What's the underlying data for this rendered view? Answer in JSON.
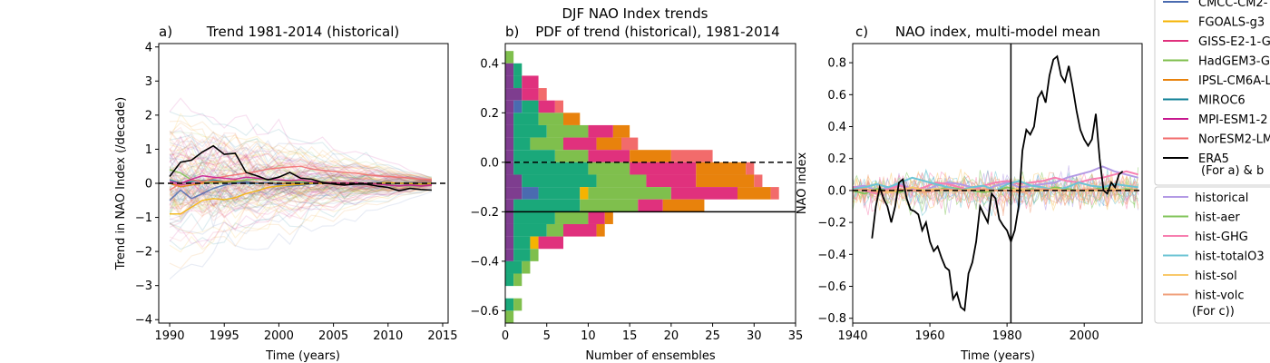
{
  "suptitle": "DJF NAO Index trends",
  "panels": {
    "a": {
      "letter": "a)",
      "title": "Trend 1981-2014 (historical)",
      "xlabel": "Time (years)",
      "ylabel": "Trend in NAO Index (/decade)"
    },
    "b": {
      "letter": "b)",
      "title": "PDF of trend (historical), 1981-2014",
      "xlabel": "Number of ensembles",
      "ylabel": ""
    },
    "c": {
      "letter": "c)",
      "title": "NAO index, multi-model mean",
      "xlabel": "Time (years)",
      "ylabel": "NAO index"
    }
  },
  "legend1": {
    "entries": [
      {
        "label": "CMCC-CM2-",
        "color": "#4a6bb0"
      },
      {
        "label": "FGOALS-g3",
        "color": "#f5b301"
      },
      {
        "label": "GISS-E2-1-G",
        "color": "#e0317d"
      },
      {
        "label": "HadGEM3-G",
        "color": "#7fbf4d"
      },
      {
        "label": "IPSL-CM6A-L",
        "color": "#e8820c"
      },
      {
        "label": "MIROC6",
        "color": "#0e7f96"
      },
      {
        "label": "MPI-ESM1-2",
        "color": "#c7178f"
      },
      {
        "label": "NorESM2-LM",
        "color": "#f26b6b"
      },
      {
        "label": "ERA5",
        "color": "#000000"
      }
    ],
    "note": "(For a) & b"
  },
  "legend2": {
    "entries": [
      {
        "label": "historical",
        "color": "#b39ae5"
      },
      {
        "label": "hist-aer",
        "color": "#82c45a"
      },
      {
        "label": "hist-GHG",
        "color": "#f77fb0"
      },
      {
        "label": "hist-totalO3",
        "color": "#6cc4d4"
      },
      {
        "label": "hist-sol",
        "color": "#f9c96a"
      },
      {
        "label": "hist-volc",
        "color": "#f0a07c"
      }
    ],
    "note": "(For c))"
  },
  "chart_data": [
    {
      "type": "line",
      "panel": "a",
      "title": "Trend 1981-2014 (historical)",
      "xlabel": "Time (years)",
      "ylabel": "Trend in NAO Index (/decade)",
      "xlim": [
        1989,
        2015.5
      ],
      "ylim": [
        -4.1,
        4.1
      ],
      "xticks": [
        1990,
        1995,
        2000,
        2005,
        2010,
        2015
      ],
      "yticks": [
        -4,
        -3,
        -2,
        -1,
        0,
        1,
        2,
        3,
        4
      ],
      "hline": 0,
      "x": [
        1990,
        1991,
        1992,
        1993,
        1994,
        1995,
        1996,
        1997,
        1998,
        1999,
        2000,
        2001,
        2002,
        2003,
        2004,
        2005,
        2006,
        2007,
        2008,
        2009,
        2010,
        2011,
        2012,
        2013,
        2014
      ],
      "series": [
        {
          "name": "ERA5",
          "color": "#000000",
          "values": [
            0.2,
            0.62,
            0.68,
            0.92,
            1.1,
            0.85,
            0.88,
            0.32,
            0.22,
            0.1,
            0.18,
            0.32,
            0.15,
            0.12,
            0.02,
            -0.02,
            -0.05,
            -0.02,
            -0.02,
            -0.08,
            -0.12,
            -0.22,
            -0.15,
            -0.18,
            -0.2
          ]
        },
        {
          "name": "MPI-ESM1-2",
          "color": "#c7178f",
          "values": [
            0.05,
            0.0,
            0.12,
            0.22,
            0.18,
            0.15,
            0.12,
            0.18,
            0.15,
            0.12,
            0.1,
            0.08,
            0.1,
            0.05,
            0.03,
            0.02,
            0.0,
            0.02,
            0.0,
            -0.02,
            -0.05,
            -0.08,
            -0.05,
            -0.08,
            -0.05
          ]
        },
        {
          "name": "NorESM2-LM",
          "color": "#f26b6b",
          "values": [
            -0.2,
            0.0,
            0.1,
            0.05,
            0.15,
            0.2,
            0.25,
            0.3,
            0.35,
            0.42,
            0.45,
            0.48,
            0.5,
            0.42,
            0.38,
            0.35,
            0.32,
            0.3,
            0.25,
            0.22,
            0.2,
            0.18,
            0.15,
            0.12,
            0.1
          ]
        },
        {
          "name": "FGOALS-g3",
          "color": "#f5b301",
          "values": [
            -0.9,
            -0.9,
            -0.7,
            -0.5,
            -0.45,
            -0.48,
            -0.42,
            -0.3,
            -0.22,
            -0.12,
            -0.08,
            -0.05,
            -0.03,
            0.0,
            0.0,
            0.02,
            0.0,
            0.0,
            -0.02,
            0.0,
            0.02,
            0.0,
            0.0,
            -0.02,
            0.0
          ]
        },
        {
          "name": "CMCC-CM2-",
          "color": "#4a6bb0",
          "values": [
            -0.5,
            -0.2,
            -0.45,
            -0.3,
            -0.15,
            -0.05,
            0.0,
            0.05,
            0.0,
            0.02,
            -0.05,
            -0.08,
            -0.05,
            -0.02,
            0.0,
            0.02,
            0.0,
            -0.02,
            0.0,
            0.02,
            0.0,
            0.0,
            0.02,
            0.0,
            0.0
          ]
        },
        {
          "name": "HadGEM3-G",
          "color": "#7fbf4d",
          "values": [
            0.4,
            0.3,
            0.1,
            0.05,
            0.0,
            0.02,
            0.05,
            0.1,
            0.12,
            0.1,
            0.08,
            0.05,
            0.05,
            0.03,
            0.05,
            0.02,
            0.0,
            0.02,
            0.0,
            0.0,
            -0.02,
            0.0,
            0.0,
            0.0,
            0.0
          ]
        },
        {
          "name": "IPSL-CM6A-L",
          "color": "#e8820c",
          "values": [
            0.0,
            -0.1,
            -0.05,
            0.0,
            0.05,
            0.05,
            0.08,
            0.05,
            0.02,
            0.0,
            0.0,
            0.0,
            -0.02,
            0.0,
            0.0,
            0.0,
            0.0,
            0.0,
            0.0,
            0.0,
            0.0,
            0.0,
            0.0,
            0.0,
            0.0
          ]
        },
        {
          "name": "MIROC6",
          "color": "#0e7f96",
          "values": [
            0.1,
            0.0,
            0.05,
            0.08,
            0.1,
            0.05,
            0.02,
            0.0,
            0.0,
            0.02,
            0.0,
            0.0,
            0.0,
            0.0,
            0.0,
            0.0,
            0.0,
            0.0,
            0.0,
            0.0,
            0.0,
            0.0,
            0.0,
            0.0,
            0.0
          ]
        },
        {
          "name": "GISS-E2-1-G",
          "color": "#e0317d",
          "values": [
            0.0,
            -0.05,
            0.0,
            0.02,
            0.05,
            0.02,
            0.0,
            0.0,
            0.02,
            0.0,
            0.0,
            0.0,
            0.0,
            0.0,
            0.0,
            0.0,
            0.0,
            0.0,
            0.0,
            0.0,
            0.0,
            0.0,
            0.0,
            0.0,
            0.0
          ]
        }
      ],
      "ensemble_spread": {
        "start_sd": 1.6,
        "end_sd": 0.15,
        "count": 120
      }
    },
    {
      "type": "bar",
      "subtype": "stacked-horizontal-histogram",
      "panel": "b",
      "title": "PDF of trend (historical), 1981-2014",
      "xlabel": "Number of ensembles",
      "xlim": [
        0,
        35
      ],
      "ylim": [
        -0.65,
        0.48
      ],
      "xticks": [
        0,
        5,
        10,
        15,
        20,
        25,
        30,
        35
      ],
      "yticks": [
        -0.6,
        -0.4,
        -0.2,
        0.0,
        0.2,
        0.4
      ],
      "hlines": [
        {
          "y": 0.0,
          "style": "dashed"
        },
        {
          "y": -0.2,
          "style": "solid"
        }
      ],
      "bin_width": 0.05,
      "model_order": [
        "MPI-ESM1-2",
        "CMCC-CM2-",
        "MIROC6",
        "FGOALS-g3",
        "HadGEM3-G",
        "GISS-E2-1-G",
        "IPSL-CM6A-L",
        "NorESM2-LM"
      ],
      "colors": {
        "MPI-ESM1-2": "#7e3d8f",
        "CMCC-CM2-": "#4a6bb0",
        "MIROC6": "#1aa87a",
        "FGOALS-g3": "#f5b301",
        "HadGEM3-G": "#7fbf4d",
        "GISS-E2-1-G": "#e0317d",
        "IPSL-CM6A-L": "#e8820c",
        "NorESM2-LM": "#f26b6b"
      },
      "bins": [
        {
          "y": 0.425,
          "counts": {
            "HadGEM3-G": 1
          }
        },
        {
          "y": 0.375,
          "counts": {
            "MPI-ESM1-2": 1,
            "MIROC6": 1
          }
        },
        {
          "y": 0.325,
          "counts": {
            "MPI-ESM1-2": 1,
            "MIROC6": 1,
            "GISS-E2-1-G": 2
          }
        },
        {
          "y": 0.275,
          "counts": {
            "MPI-ESM1-2": 2,
            "GISS-E2-1-G": 2,
            "NorESM2-LM": 1,
            "IPSL-CM6A-L": 0
          }
        },
        {
          "y": 0.225,
          "counts": {
            "MPI-ESM1-2": 1,
            "CMCC-CM2-": 1,
            "MIROC6": 2,
            "GISS-E2-1-G": 2,
            "NorESM2-LM": 1,
            "MIROC6_2": 0
          }
        },
        {
          "y": 0.175,
          "counts": {
            "MPI-ESM1-2": 1,
            "MIROC6": 3,
            "HadGEM3-G": 3,
            "IPSL-CM6A-L": 2
          }
        },
        {
          "y": 0.125,
          "counts": {
            "MPI-ESM1-2": 1,
            "MIROC6": 4,
            "GISS-E2-1-G": 3,
            "HadGEM3-G": 5,
            "IPSL-CM6A-L": 2
          }
        },
        {
          "y": 0.075,
          "counts": {
            "MPI-ESM1-2": 1,
            "MIROC6": 2,
            "GISS-E2-1-G": 4,
            "HadGEM3-G": 4,
            "IPSL-CM6A-L": 3,
            "NorESM2-LM": 2
          }
        },
        {
          "y": 0.025,
          "counts": {
            "MPI-ESM1-2": 1,
            "MIROC6": 5,
            "GISS-E2-1-G": 5,
            "HadGEM3-G": 4,
            "IPSL-CM6A-L": 5,
            "NorESM2-LM": 5
          }
        },
        {
          "y": -0.025,
          "counts": {
            "MPI-ESM1-2": 1,
            "MIROC6": 9,
            "HadGEM3-G": 5,
            "IPSL-CM6A-L": 6,
            "GISS-E2-1-G": 8,
            "NorESM2-LM": 1
          }
        },
        {
          "y": -0.075,
          "counts": {
            "MPI-ESM1-2": 2,
            "MIROC6": 9,
            "HadGEM3-G": 6,
            "IPSL-CM6A-L": 7,
            "GISS-E2-1-G": 6,
            "NorESM2-LM": 1
          }
        },
        {
          "y": -0.125,
          "counts": {
            "MPI-ESM1-2": 2,
            "MIROC6": 5,
            "CMCC-CM2-": 2,
            "FGOALS-g3": 1,
            "HadGEM3-G": 10,
            "IPSL-CM6A-L": 4,
            "GISS-E2-1-G": 8,
            "NorESM2-LM": 1
          }
        },
        {
          "y": -0.175,
          "counts": {
            "MPI-ESM1-2": 1,
            "MIROC6": 8,
            "HadGEM3-G": 7,
            "IPSL-CM6A-L": 5,
            "GISS-E2-1-G": 3
          }
        },
        {
          "y": -0.225,
          "counts": {
            "MPI-ESM1-2": 1,
            "MIROC6": 5,
            "HadGEM3-G": 4,
            "GISS-E2-1-G": 2,
            "IPSL-CM6A-L": 1
          }
        },
        {
          "y": -0.275,
          "counts": {
            "MPI-ESM1-2": 1,
            "MIROC6": 4,
            "GISS-E2-1-G": 4,
            "HadGEM3-G": 2,
            "IPSL-CM6A-L": 1
          }
        },
        {
          "y": -0.325,
          "counts": {
            "MPI-ESM1-2": 1,
            "MIROC6": 2,
            "FGOALS-g3": 1,
            "GISS-E2-1-G": 3
          }
        },
        {
          "y": -0.375,
          "counts": {
            "MPI-ESM1-2": 1,
            "MIROC6": 2,
            "HadGEM3-G": 1
          }
        },
        {
          "y": -0.425,
          "counts": {
            "HadGEM3-G": 1,
            "MIROC6": 2
          }
        },
        {
          "y": -0.475,
          "counts": {
            "MIROC6": 1,
            "HadGEM3-G": 1
          }
        },
        {
          "y": -0.525,
          "counts": {}
        },
        {
          "y": -0.575,
          "counts": {
            "HadGEM3-G": 1,
            "MIROC6": 1
          }
        },
        {
          "y": -0.625,
          "counts": {
            "HadGEM3-G": 1
          }
        }
      ]
    },
    {
      "type": "line",
      "panel": "c",
      "title": "NAO index, multi-model mean",
      "xlabel": "Time (years)",
      "ylabel": "NAO index",
      "xlim": [
        1940,
        2015
      ],
      "ylim": [
        -0.83,
        0.92
      ],
      "xticks": [
        1940,
        1960,
        1980,
        2000
      ],
      "yticks": [
        -0.8,
        -0.6,
        -0.4,
        -0.2,
        0.0,
        0.2,
        0.4,
        0.6,
        0.8
      ],
      "hline": 0,
      "vline": 1981,
      "era5": {
        "name": "ERA5",
        "color": "#000000",
        "x": [
          1945,
          1946,
          1947,
          1948,
          1949,
          1950,
          1951,
          1952,
          1953,
          1954,
          1955,
          1956,
          1957,
          1958,
          1959,
          1960,
          1961,
          1962,
          1963,
          1964,
          1965,
          1966,
          1967,
          1968,
          1969,
          1970,
          1971,
          1972,
          1973,
          1974,
          1975,
          1976,
          1977,
          1978,
          1979,
          1980,
          1981,
          1982,
          1983,
          1984,
          1985,
          1986,
          1987,
          1988,
          1989,
          1990,
          1991,
          1992,
          1993,
          1994,
          1995,
          1996,
          1997,
          1998,
          1999,
          2000,
          2001,
          2002,
          2003,
          2004,
          2005,
          2006,
          2007,
          2008,
          2009,
          2010
        ],
        "y": [
          -0.3,
          -0.1,
          0.02,
          -0.05,
          -0.1,
          -0.2,
          -0.1,
          0.05,
          0.07,
          -0.05,
          -0.12,
          -0.13,
          -0.15,
          -0.25,
          -0.2,
          -0.32,
          -0.38,
          -0.35,
          -0.42,
          -0.48,
          -0.5,
          -0.68,
          -0.64,
          -0.73,
          -0.75,
          -0.52,
          -0.45,
          -0.32,
          -0.1,
          -0.15,
          -0.2,
          -0.02,
          -0.05,
          -0.18,
          -0.22,
          -0.25,
          -0.32,
          -0.25,
          -0.1,
          0.25,
          0.38,
          0.35,
          0.4,
          0.58,
          0.62,
          0.55,
          0.72,
          0.82,
          0.84,
          0.72,
          0.68,
          0.78,
          0.65,
          0.5,
          0.38,
          0.32,
          0.28,
          0.32,
          0.48,
          0.2,
          0.0,
          -0.02,
          0.05,
          0.02,
          0.1,
          0.12
        ]
      },
      "experiments": [
        {
          "name": "historical",
          "color": "#b39ae5",
          "values": [
            0.02,
            0.03,
            0.0,
            0.02,
            0.04,
            0.01,
            0.0,
            0.03,
            0.05,
            0.04,
            0.02,
            0.0,
            0.03,
            0.05,
            0.02,
            0.03,
            0.04,
            0.05,
            0.08,
            0.1,
            0.12,
            0.15,
            0.12,
            0.1,
            0.08
          ]
        },
        {
          "name": "hist-aer",
          "color": "#82c45a",
          "values": [
            0.0,
            -0.02,
            0.01,
            0.0,
            -0.01,
            0.02,
            0.0,
            0.0,
            0.02,
            0.01,
            0.0,
            -0.01,
            0.0,
            0.02,
            0.0,
            0.01,
            0.0,
            0.02,
            0.01,
            0.0,
            0.0,
            0.02,
            0.0,
            0.01,
            0.0
          ]
        },
        {
          "name": "hist-GHG",
          "color": "#f77fb0",
          "values": [
            0.02,
            0.0,
            -0.02,
            0.01,
            0.03,
            0.0,
            0.02,
            0.05,
            0.04,
            0.02,
            0.0,
            0.03,
            0.05,
            0.06,
            0.04,
            0.05,
            0.06,
            0.08,
            0.06,
            0.05,
            0.07,
            0.08,
            0.1,
            0.12,
            0.1
          ]
        },
        {
          "name": "hist-totalO3",
          "color": "#6cc4d4",
          "values": [
            0.01,
            0.02,
            0.04,
            0.02,
            0.05,
            0.08,
            0.06,
            0.04,
            0.02,
            0.0,
            0.02,
            0.03,
            0.0,
            0.04,
            0.06,
            0.03,
            0.02,
            0.0,
            0.02,
            0.05,
            0.03,
            0.02,
            0.04,
            0.03,
            0.02
          ]
        },
        {
          "name": "hist-sol",
          "color": "#f9c96a",
          "values": [
            0.0,
            0.01,
            0.0,
            -0.01,
            0.0,
            0.02,
            0.0,
            0.01,
            0.0,
            0.0,
            0.01,
            0.0,
            0.0,
            0.0,
            0.01,
            0.0,
            0.0,
            0.01,
            0.0,
            0.0,
            0.0,
            0.0,
            0.01,
            0.0,
            0.0
          ]
        },
        {
          "name": "hist-volc",
          "color": "#f0a07c",
          "values": [
            0.0,
            0.01,
            -0.01,
            0.0,
            0.01,
            0.0,
            -0.01,
            0.0,
            0.01,
            0.0,
            0.0,
            0.01,
            0.0,
            0.0,
            -0.01,
            0.0,
            0.01,
            0.0,
            0.0,
            0.0,
            0.01,
            0.0,
            0.0,
            0.0,
            0.0
          ]
        }
      ]
    }
  ]
}
